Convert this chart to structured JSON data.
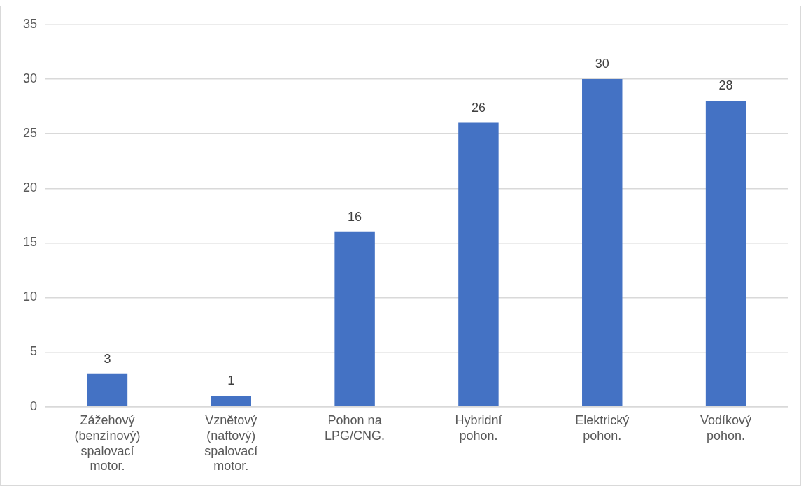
{
  "chart_data": {
    "type": "bar",
    "categories": [
      "Zážehový (benzínový) spalovací motor.",
      "Vznětový (naftový) spalovací motor.",
      "Pohon na LPG/CNG.",
      "Hybridní pohon.",
      "Elektrický pohon.",
      "Vodíkový pohon."
    ],
    "values": [
      3,
      1,
      16,
      26,
      30,
      28
    ],
    "color": "#4472c4",
    "ylim": [
      0,
      35
    ],
    "yticks": [
      0,
      5,
      10,
      15,
      20,
      25,
      30,
      35
    ],
    "grid": "y",
    "data_labels": true,
    "legend": false
  }
}
